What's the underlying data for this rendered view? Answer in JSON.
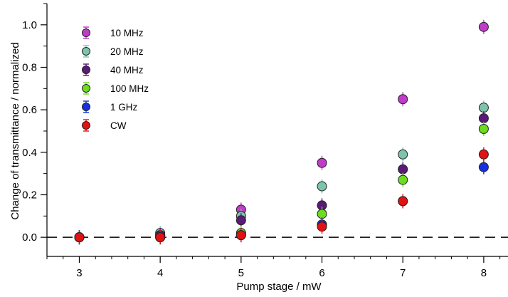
{
  "chart_data": {
    "type": "scatter",
    "xlabel": "Pump stage / mW",
    "ylabel": "Change of transmittance / normalized",
    "xlim": [
      2.6,
      8.3
    ],
    "ylim": [
      -0.09,
      1.1
    ],
    "x_ticks": [
      3,
      4,
      5,
      6,
      7,
      8
    ],
    "y_ticks": [
      0.0,
      0.2,
      0.4,
      0.6,
      0.8,
      1.0
    ],
    "x_tick_labels": [
      "3",
      "4",
      "5",
      "6",
      "7",
      "8"
    ],
    "y_tick_labels": [
      "0.0",
      "0.2",
      "0.4",
      "0.6",
      "0.8",
      "1.0"
    ],
    "reference_line": {
      "y": 0.0,
      "style": "dashed"
    },
    "grid": false,
    "legend_position": "top-left",
    "series": [
      {
        "name": "10 MHz",
        "color": "#c03cc8",
        "x": [
          3,
          4,
          5,
          6,
          7,
          8
        ],
        "y": [
          0.0,
          0.01,
          0.13,
          0.35,
          0.65,
          0.99
        ]
      },
      {
        "name": "20 MHz",
        "color": "#7cc4ac",
        "x": [
          3,
          4,
          5,
          6,
          7,
          8
        ],
        "y": [
          0.0,
          0.02,
          0.1,
          0.24,
          0.39,
          0.61
        ]
      },
      {
        "name": "40 MHz",
        "color": "#5a1a78",
        "x": [
          3,
          4,
          5,
          6,
          7,
          8
        ],
        "y": [
          0.0,
          0.01,
          0.08,
          0.15,
          0.32,
          0.56
        ]
      },
      {
        "name": "100 MHz",
        "color": "#6cdc1c",
        "x": [
          3,
          4,
          5,
          6,
          7,
          8
        ],
        "y": [
          0.0,
          0.0,
          0.02,
          0.11,
          0.27,
          0.51
        ]
      },
      {
        "name": "1 GHz",
        "color": "#1430e0",
        "x": [
          3,
          4,
          5,
          6,
          7,
          8
        ],
        "y": [
          0.0,
          0.0,
          0.01,
          0.06,
          0.17,
          0.33
        ]
      },
      {
        "name": "CW",
        "color": "#e01212",
        "x": [
          3,
          4,
          5,
          6,
          7,
          8
        ],
        "y": [
          0.0,
          0.0,
          0.01,
          0.05,
          0.17,
          0.39
        ]
      }
    ]
  }
}
